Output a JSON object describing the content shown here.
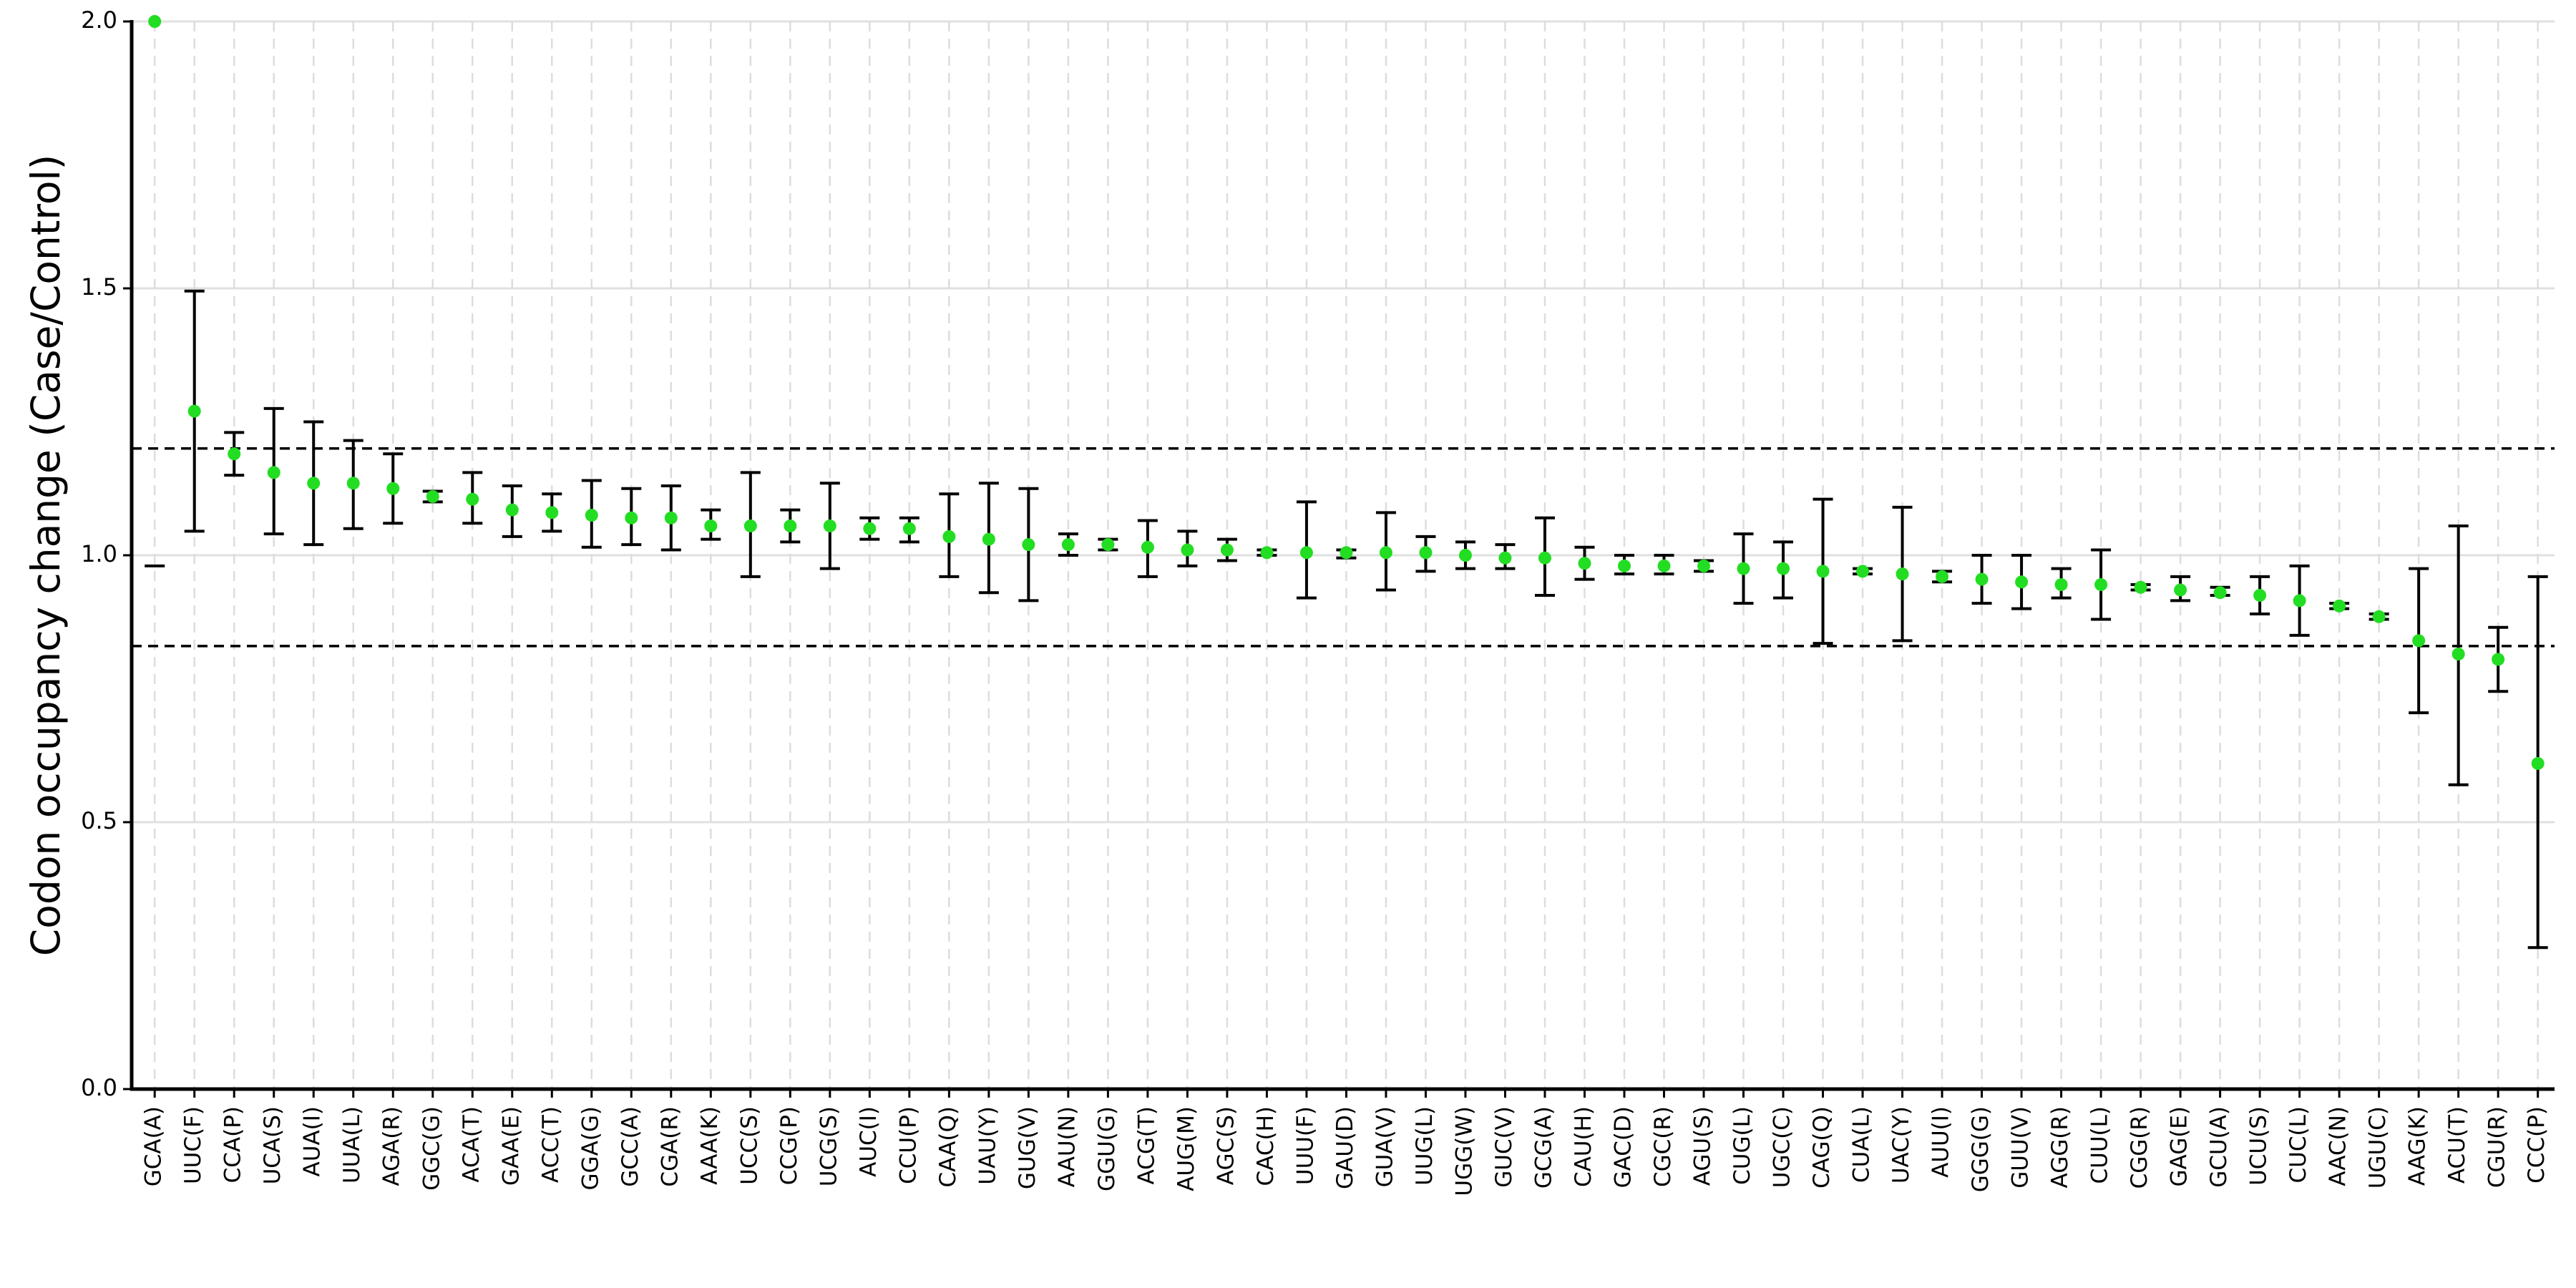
{
  "chart_data": {
    "type": "errorbar",
    "y_label": "Codon occupancy change (Case/Control)",
    "categories": [
      "GCA(A)",
      "UUC(F)",
      "CCA(P)",
      "UCA(S)",
      "AUA(I)",
      "UUA(L)",
      "AGA(R)",
      "GGC(G)",
      "ACA(T)",
      "GAA(E)",
      "ACC(T)",
      "GGA(G)",
      "GCC(A)",
      "CGA(R)",
      "AAA(K)",
      "UCC(S)",
      "CCG(P)",
      "UCG(S)",
      "AUC(I)",
      "CCU(P)",
      "CAA(Q)",
      "UAU(Y)",
      "GUG(V)",
      "AAU(N)",
      "GGU(G)",
      "ACG(T)",
      "AUG(M)",
      "AGC(S)",
      "CAC(H)",
      "UUU(F)",
      "GAU(D)",
      "GUA(V)",
      "UUG(L)",
      "UGG(W)",
      "GUC(V)",
      "GCG(A)",
      "CAU(H)",
      "GAC(D)",
      "CGC(R)",
      "AGU(S)",
      "CUG(L)",
      "UGC(C)",
      "CAG(Q)",
      "CUA(L)",
      "UAC(Y)",
      "AUU(I)",
      "GGG(G)",
      "GUU(V)",
      "AGG(R)",
      "CUU(L)",
      "CGG(R)",
      "GAG(E)",
      "GCU(A)",
      "UCU(S)",
      "CUC(L)",
      "AAC(N)",
      "UGU(C)",
      "AAG(K)",
      "ACU(T)",
      "CGU(R)",
      "CCC(P)"
    ],
    "values": [
      2.0,
      1.27,
      1.19,
      1.155,
      1.135,
      1.135,
      1.125,
      1.11,
      1.105,
      1.085,
      1.08,
      1.075,
      1.07,
      1.07,
      1.055,
      1.055,
      1.055,
      1.055,
      1.05,
      1.05,
      1.035,
      1.03,
      1.02,
      1.02,
      1.02,
      1.015,
      1.01,
      1.01,
      1.005,
      1.005,
      1.005,
      1.005,
      1.005,
      1.0,
      0.995,
      0.995,
      0.985,
      0.98,
      0.98,
      0.98,
      0.975,
      0.975,
      0.97,
      0.97,
      0.965,
      0.96,
      0.955,
      0.95,
      0.945,
      0.945,
      0.94,
      0.935,
      0.93,
      0.925,
      0.915,
      0.905,
      0.885,
      0.84,
      0.815,
      0.805,
      0.61
    ],
    "lower": [
      0.98,
      1.045,
      1.15,
      1.04,
      1.02,
      1.05,
      1.06,
      1.1,
      1.06,
      1.035,
      1.045,
      1.015,
      1.02,
      1.01,
      1.03,
      0.96,
      1.025,
      0.975,
      1.03,
      1.025,
      0.96,
      0.93,
      0.915,
      1.0,
      1.01,
      0.96,
      0.98,
      0.99,
      1.0,
      0.92,
      0.995,
      0.935,
      0.97,
      0.975,
      0.975,
      0.925,
      0.955,
      0.965,
      0.965,
      0.97,
      0.91,
      0.92,
      0.835,
      0.965,
      0.84,
      0.95,
      0.91,
      0.9,
      0.92,
      0.88,
      0.935,
      0.915,
      0.925,
      0.89,
      0.85,
      0.9,
      0.88,
      0.705,
      0.57,
      0.745,
      0.265
    ],
    "upper": [
      null,
      1.495,
      1.23,
      1.275,
      1.25,
      1.215,
      1.19,
      1.12,
      1.155,
      1.13,
      1.115,
      1.14,
      1.125,
      1.13,
      1.085,
      1.155,
      1.085,
      1.135,
      1.07,
      1.07,
      1.115,
      1.135,
      1.125,
      1.04,
      1.03,
      1.065,
      1.045,
      1.03,
      1.01,
      1.1,
      1.01,
      1.08,
      1.035,
      1.025,
      1.02,
      1.07,
      1.015,
      1.0,
      1.0,
      0.99,
      1.04,
      1.025,
      1.105,
      0.975,
      1.09,
      0.97,
      1.0,
      1.0,
      0.975,
      1.01,
      0.945,
      0.96,
      0.94,
      0.96,
      0.98,
      0.91,
      0.89,
      0.975,
      1.055,
      0.865,
      0.96
    ],
    "color": "#22dd22",
    "ylim": [
      0,
      2
    ],
    "yticks": [
      {
        "value": 0,
        "label": "0.0"
      },
      {
        "value": 0.5,
        "label": "0.5"
      },
      {
        "value": 1,
        "label": "1.0"
      },
      {
        "value": 1.5,
        "label": "1.5"
      },
      {
        "value": 2,
        "label": "2.0"
      }
    ],
    "hlines": [
      1.2,
      0.83
    ],
    "grid": true
  }
}
